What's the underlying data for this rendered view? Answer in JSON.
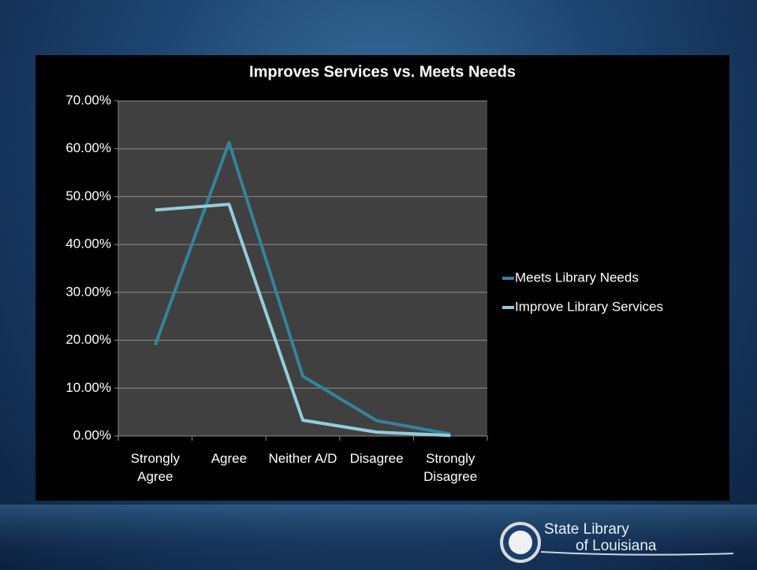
{
  "chart_data": {
    "type": "line",
    "title": "Improves Services vs. Meets Needs",
    "categories": [
      "Strongly Agree",
      "Agree",
      "Neither A/D",
      "Disagree",
      "Strongly Disagree"
    ],
    "series": [
      {
        "name": "Meets Library Needs",
        "color": "#31849b",
        "values": [
          19,
          61.3,
          12.5,
          3.2,
          0.4
        ]
      },
      {
        "name": "Improve Library Services",
        "color": "#93cddd",
        "values": [
          47.2,
          48.4,
          3.3,
          0.8,
          0.1
        ]
      }
    ],
    "ylim": [
      0,
      70
    ],
    "yticks": [
      {
        "value": 0,
        "label": "0.00%"
      },
      {
        "value": 10,
        "label": "10.00%"
      },
      {
        "value": 20,
        "label": "20.00%"
      },
      {
        "value": 30,
        "label": "30.00%"
      },
      {
        "value": 40,
        "label": "40.00%"
      },
      {
        "value": 50,
        "label": "50.00%"
      },
      {
        "value": 60,
        "label": "60.00%"
      },
      {
        "value": 70,
        "label": "70.00%"
      }
    ],
    "grid": true,
    "legend": "right"
  },
  "logo": {
    "line1": "State Library",
    "line2": "of Louisiana"
  }
}
